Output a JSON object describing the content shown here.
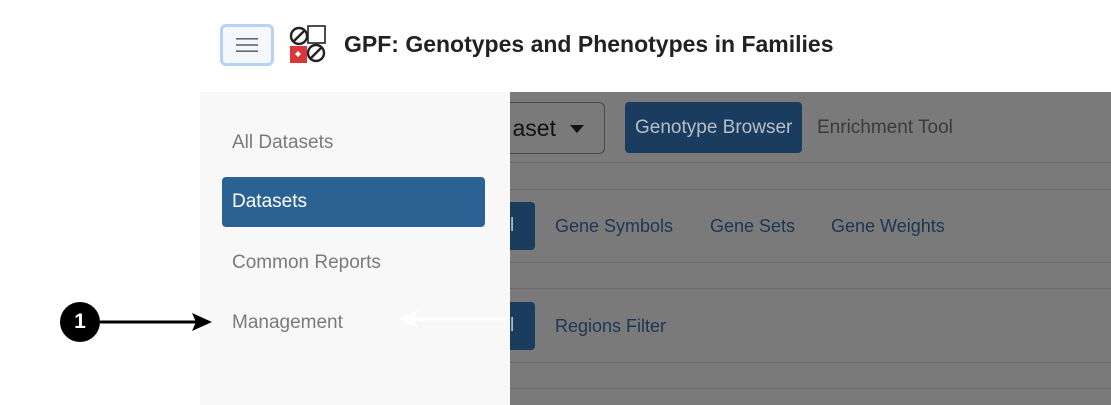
{
  "header": {
    "menu_icon": "hamburger-icon",
    "logo_icon": "gpf-logo-icon",
    "title": "GPF: Genotypes and Phenotypes in Families"
  },
  "toolbar": {
    "dataset_select_value": "aset",
    "tools": [
      {
        "label": "Genotype Browser",
        "selected": true
      },
      {
        "label": "Enrichment Tool",
        "selected": false
      }
    ]
  },
  "filters": {
    "gene_row": {
      "tab_label": "l",
      "links": [
        "Gene Symbols",
        "Gene Sets",
        "Gene Weights"
      ]
    },
    "region_row": {
      "tab_label": "l",
      "links": [
        "Regions Filter"
      ]
    }
  },
  "sidebar": {
    "items": [
      {
        "label": "All Datasets",
        "active": false
      },
      {
        "label": "Datasets",
        "active": true
      },
      {
        "label": "Common Reports",
        "active": false
      },
      {
        "label": "Management",
        "active": false
      }
    ]
  },
  "annotation": {
    "callout_number": "1"
  },
  "colors": {
    "accent": "#2a6294",
    "backdrop": "#7a7a7a",
    "sidebar": "#f8f8f8"
  }
}
